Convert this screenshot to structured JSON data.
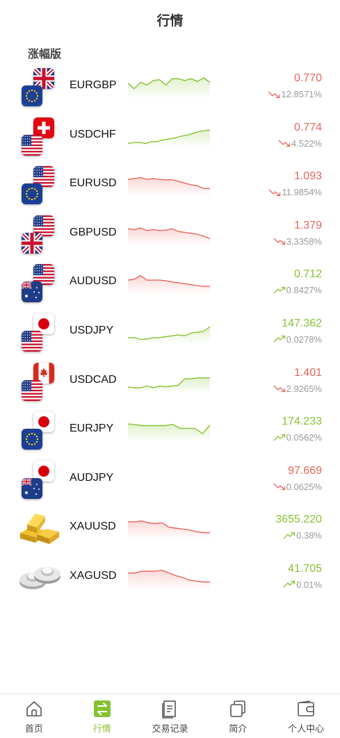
{
  "header": {
    "title": "行情"
  },
  "section": {
    "title": "涨幅版"
  },
  "colors": {
    "up": "#86c232",
    "down": "#e8645a",
    "muted": "#999999"
  },
  "quotes": [
    {
      "symbol": "EURGBP",
      "price": "0.770",
      "change": "12.8571%",
      "direction": "down",
      "trend": "up",
      "flags": [
        "eu",
        "gb"
      ],
      "spark": [
        0.7,
        0.4,
        0.75,
        0.6,
        0.85,
        0.9,
        0.6,
        0.95,
        0.95,
        0.85,
        0.95,
        0.8,
        1.0,
        0.75
      ]
    },
    {
      "symbol": "USDCHF",
      "price": "0.774",
      "change": "4.522%",
      "direction": "down",
      "trend": "up",
      "flags": [
        "us",
        "ch"
      ],
      "spark": [
        0.1,
        0.15,
        0.15,
        0.1,
        0.2,
        0.2,
        0.3,
        0.35,
        0.4,
        0.5,
        0.55,
        0.65,
        0.75,
        0.8,
        0.85
      ]
    },
    {
      "symbol": "EURUSD",
      "price": "1.093",
      "change": "11.9854%",
      "direction": "down",
      "trend": "down",
      "flags": [
        "eu",
        "us"
      ],
      "spark": [
        0.8,
        0.85,
        0.9,
        0.8,
        0.85,
        0.8,
        0.78,
        0.78,
        0.7,
        0.6,
        0.5,
        0.45,
        0.3,
        0.3
      ]
    },
    {
      "symbol": "GBPUSD",
      "price": "1.379",
      "change": "3.3358%",
      "direction": "down",
      "trend": "down",
      "flags": [
        "gb",
        "us"
      ],
      "spark": [
        0.8,
        0.75,
        0.85,
        0.7,
        0.75,
        0.7,
        0.72,
        0.8,
        0.65,
        0.6,
        0.55,
        0.5,
        0.4,
        0.25
      ]
    },
    {
      "symbol": "AUDUSD",
      "price": "0.712",
      "change": "0.8427%",
      "direction": "up",
      "trend": "down",
      "flags": [
        "au",
        "us"
      ],
      "spark": [
        0.65,
        0.7,
        0.9,
        0.65,
        0.65,
        0.65,
        0.62,
        0.55,
        0.5,
        0.45,
        0.4,
        0.35,
        0.3,
        0.3
      ]
    },
    {
      "symbol": "USDJPY",
      "price": "147.362",
      "change": "0.0278%",
      "direction": "up",
      "trend": "up",
      "flags": [
        "us",
        "jp"
      ],
      "spark": [
        0.2,
        0.2,
        0.1,
        0.12,
        0.2,
        0.2,
        0.25,
        0.3,
        0.35,
        0.3,
        0.45,
        0.5,
        0.55,
        0.8
      ]
    },
    {
      "symbol": "USDCAD",
      "price": "1.401",
      "change": "2.9265%",
      "direction": "down",
      "trend": "up",
      "flags": [
        "us",
        "ca"
      ],
      "spark": [
        0.2,
        0.15,
        0.15,
        0.25,
        0.15,
        0.25,
        0.2,
        0.25,
        0.3,
        0.65,
        0.65,
        0.7,
        0.7,
        0.7
      ]
    },
    {
      "symbol": "EURJPY",
      "price": "174.233",
      "change": "0.0562%",
      "direction": "up",
      "trend": "up",
      "flags": [
        "eu",
        "jp"
      ],
      "spark": [
        0.85,
        0.8,
        0.75,
        0.75,
        0.75,
        0.75,
        0.82,
        0.6,
        0.6,
        0.6,
        0.3,
        0.8
      ]
    },
    {
      "symbol": "AUDJPY",
      "price": "97.669",
      "change": "0.0625%",
      "direction": "down",
      "trend": "none",
      "flags": [
        "au",
        "jp"
      ],
      "spark": []
    },
    {
      "symbol": "XAUUSD",
      "price": "3655.220",
      "change": "0.38%",
      "direction": "up",
      "trend": "down",
      "flags": [
        "gold"
      ],
      "spark": [
        0.85,
        0.85,
        0.9,
        0.8,
        0.75,
        0.8,
        0.55,
        0.5,
        0.45,
        0.4,
        0.3,
        0.25,
        0.25
      ]
    },
    {
      "symbol": "XAGUSD",
      "price": "41.705",
      "change": "0.01%",
      "direction": "up",
      "trend": "down",
      "flags": [
        "silver"
      ],
      "spark": [
        0.75,
        0.75,
        0.85,
        0.85,
        0.85,
        0.9,
        0.75,
        0.6,
        0.5,
        0.35,
        0.3,
        0.25,
        0.25
      ]
    }
  ],
  "tabbar": {
    "items": [
      {
        "label": "首页",
        "icon": "home-icon",
        "active": false
      },
      {
        "label": "行情",
        "icon": "exchange-icon",
        "active": true
      },
      {
        "label": "交易记录",
        "icon": "records-icon",
        "active": false
      },
      {
        "label": "简介",
        "icon": "intro-icon",
        "active": false
      },
      {
        "label": "个人中心",
        "icon": "wallet-icon",
        "active": false
      }
    ]
  }
}
